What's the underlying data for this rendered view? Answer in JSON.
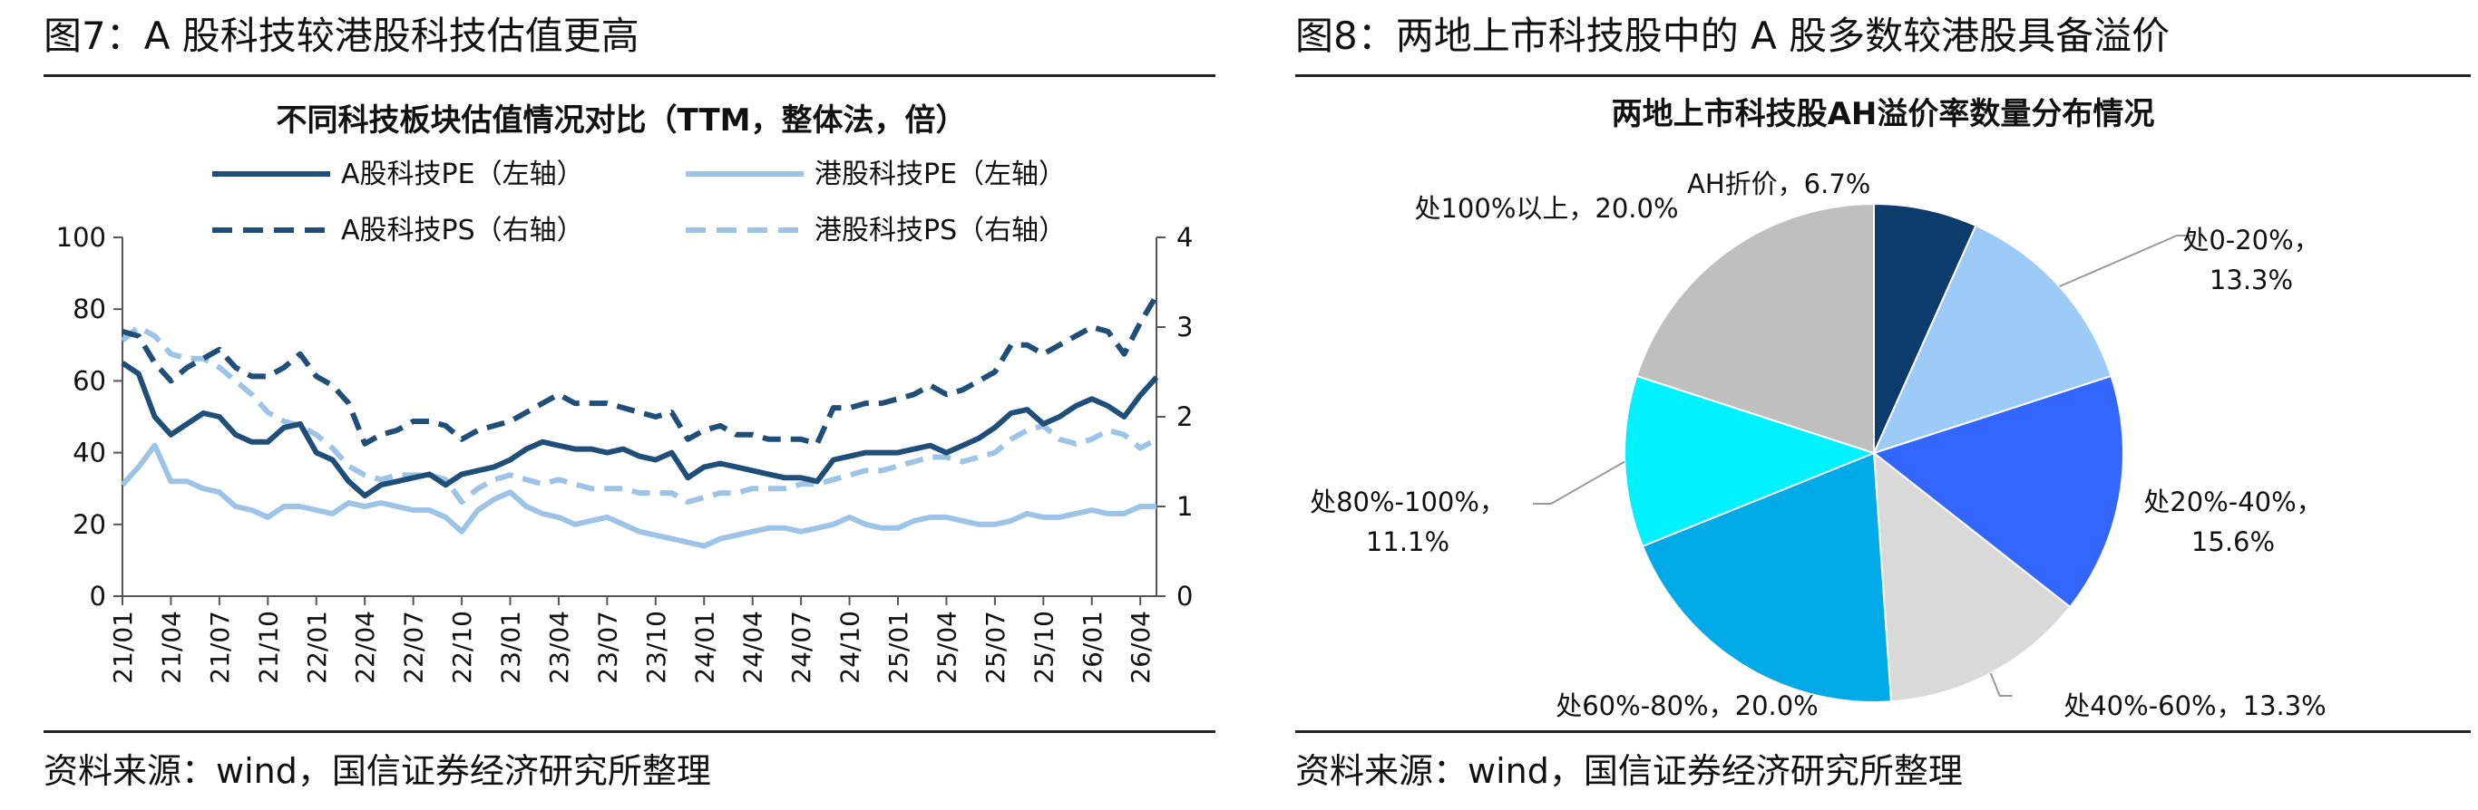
{
  "left": {
    "figure_title": "图7：A 股科技较港股科技估值更高",
    "source": "资料来源：wind，国信证券经济研究所整理"
  },
  "right": {
    "figure_title": "图8：两地上市科技股中的 A 股多数较港股具备溢价",
    "source": "资料来源：wind，国信证券经济研究所整理"
  },
  "colors": {
    "dark_blue": "#1F4E79",
    "light_blue": "#9DC3E6",
    "axis": "#555555"
  },
  "chart_data": [
    {
      "type": "line",
      "title": "不同科技板块估值情况对比（TTM，整体法，倍）",
      "x": [
        "21/01",
        "21/02",
        "21/03",
        "21/04",
        "21/05",
        "21/06",
        "21/07",
        "21/08",
        "21/09",
        "21/10",
        "21/11",
        "21/12",
        "22/01",
        "22/02",
        "22/03",
        "22/04",
        "22/05",
        "22/06",
        "22/07",
        "22/08",
        "22/09",
        "22/10",
        "22/11",
        "22/12",
        "23/01",
        "23/02",
        "23/03",
        "23/04",
        "23/05",
        "23/06",
        "23/07",
        "23/08",
        "23/09",
        "23/10",
        "23/11",
        "23/12",
        "24/01",
        "24/02",
        "24/03",
        "24/04",
        "24/05",
        "24/06",
        "24/07",
        "24/08",
        "24/09",
        "24/10",
        "24/11",
        "24/12",
        "25/01",
        "25/02",
        "25/03",
        "25/04",
        "25/05",
        "25/06",
        "25/07",
        "25/08",
        "25/09",
        "25/10",
        "25/11",
        "25/12",
        "26/01",
        "26/02",
        "26/03",
        "26/04",
        "26/05"
      ],
      "x_tick_labels": [
        "21/01",
        "21/04",
        "21/07",
        "21/10",
        "22/01",
        "22/04",
        "22/07",
        "22/10",
        "23/01",
        "23/04",
        "23/07",
        "23/10",
        "24/01",
        "24/04",
        "24/07",
        "24/10",
        "25/01",
        "25/04",
        "25/07",
        "25/10",
        "26/01",
        "26/04"
      ],
      "y_left_ticks": [
        "0",
        "20",
        "40",
        "60",
        "80",
        "100"
      ],
      "y_right_ticks": [
        "0",
        "1",
        "2",
        "3",
        "4"
      ],
      "ylim_left": [
        0,
        100
      ],
      "ylim_right": [
        0,
        4
      ],
      "legend_placement": "top",
      "series": [
        {
          "name": "A股科技PE（左轴）",
          "axis": "left",
          "style": "solid",
          "color": "#1F4E79",
          "values": [
            65,
            62,
            50,
            45,
            48,
            51,
            50,
            45,
            43,
            43,
            47,
            48,
            40,
            38,
            32,
            28,
            31,
            32,
            33,
            34,
            31,
            34,
            35,
            36,
            38,
            41,
            43,
            42,
            41,
            41,
            40,
            41,
            39,
            38,
            40,
            33,
            36,
            37,
            36,
            35,
            34,
            33,
            33,
            32,
            38,
            39,
            40,
            40,
            40,
            41,
            42,
            40,
            42,
            44,
            47,
            51,
            52,
            48,
            50,
            53,
            55,
            53,
            50,
            56,
            61
          ]
        },
        {
          "name": "港股科技PE（左轴）",
          "axis": "left",
          "style": "solid",
          "color": "#9DC3E6",
          "values": [
            31,
            36,
            42,
            32,
            32,
            30,
            29,
            25,
            24,
            22,
            25,
            25,
            24,
            23,
            26,
            25,
            26,
            25,
            24,
            24,
            22,
            18,
            24,
            27,
            29,
            25,
            23,
            22,
            20,
            21,
            22,
            20,
            18,
            17,
            16,
            15,
            14,
            16,
            17,
            18,
            19,
            19,
            18,
            19,
            20,
            22,
            20,
            19,
            19,
            21,
            22,
            22,
            21,
            20,
            20,
            21,
            23,
            22,
            22,
            23,
            24,
            23,
            23,
            25,
            25
          ]
        },
        {
          "name": "A股科技PS（右轴）",
          "axis": "right",
          "style": "dashed",
          "color": "#1F4E79",
          "values": [
            2.95,
            2.9,
            2.6,
            2.4,
            2.55,
            2.65,
            2.75,
            2.55,
            2.45,
            2.45,
            2.55,
            2.7,
            2.45,
            2.35,
            2.15,
            1.7,
            1.8,
            1.85,
            1.95,
            1.95,
            1.9,
            1.75,
            1.85,
            1.9,
            1.95,
            2.05,
            2.15,
            2.25,
            2.15,
            2.15,
            2.15,
            2.1,
            2.05,
            2.0,
            2.05,
            1.75,
            1.85,
            1.9,
            1.8,
            1.8,
            1.75,
            1.75,
            1.75,
            1.7,
            2.1,
            2.1,
            2.15,
            2.15,
            2.2,
            2.25,
            2.35,
            2.25,
            2.3,
            2.4,
            2.5,
            2.8,
            2.8,
            2.7,
            2.8,
            2.9,
            3.0,
            2.95,
            2.7,
            3.05,
            3.35
          ]
        },
        {
          "name": "港股科技PS（右轴）",
          "axis": "right",
          "style": "dashed",
          "color": "#9DC3E6",
          "values": [
            2.85,
            3.0,
            2.9,
            2.7,
            2.65,
            2.65,
            2.55,
            2.4,
            2.25,
            2.05,
            1.95,
            1.9,
            1.8,
            1.65,
            1.45,
            1.35,
            1.3,
            1.35,
            1.35,
            1.35,
            1.3,
            1.05,
            1.2,
            1.3,
            1.35,
            1.3,
            1.25,
            1.3,
            1.25,
            1.2,
            1.2,
            1.2,
            1.15,
            1.15,
            1.15,
            1.05,
            1.1,
            1.15,
            1.15,
            1.2,
            1.2,
            1.2,
            1.25,
            1.25,
            1.3,
            1.35,
            1.4,
            1.4,
            1.45,
            1.5,
            1.55,
            1.55,
            1.5,
            1.55,
            1.6,
            1.75,
            1.85,
            1.9,
            1.75,
            1.7,
            1.75,
            1.85,
            1.8,
            1.65,
            1.75
          ]
        }
      ]
    },
    {
      "type": "pie",
      "title": "两地上市科技股AH溢价率数量分布情况",
      "start_angle_deg": 0,
      "direction": "clockwise",
      "slices": [
        {
          "name": "AH折价",
          "value": 6.7,
          "color": "#0B3C6B",
          "label_lines": [
            "AH折价，6.7%"
          ]
        },
        {
          "name": "处0-20%",
          "value": 13.3,
          "color": "#9DCBF7",
          "label_lines": [
            "处0-20%，",
            "13.3%"
          ]
        },
        {
          "name": "处20%-40%",
          "value": 15.6,
          "color": "#3366FF",
          "label_lines": [
            "处20%-40%，",
            "15.6%"
          ]
        },
        {
          "name": "处40%-60%",
          "value": 13.3,
          "color": "#D9D9D9",
          "label_lines": [
            "处40%-60%，13.3%"
          ]
        },
        {
          "name": "处60%-80%",
          "value": 20.0,
          "color": "#00A9E8",
          "label_lines": [
            "处60%-80%，20.0%"
          ]
        },
        {
          "name": "处80%-100%",
          "value": 11.1,
          "color": "#00F2FF",
          "label_lines": [
            "处80%-100%，",
            "11.1%"
          ]
        },
        {
          "name": "处100%以上",
          "value": 20.0,
          "color": "#BFBFBF",
          "label_lines": [
            "处100%以上，20.0%"
          ]
        }
      ]
    }
  ]
}
